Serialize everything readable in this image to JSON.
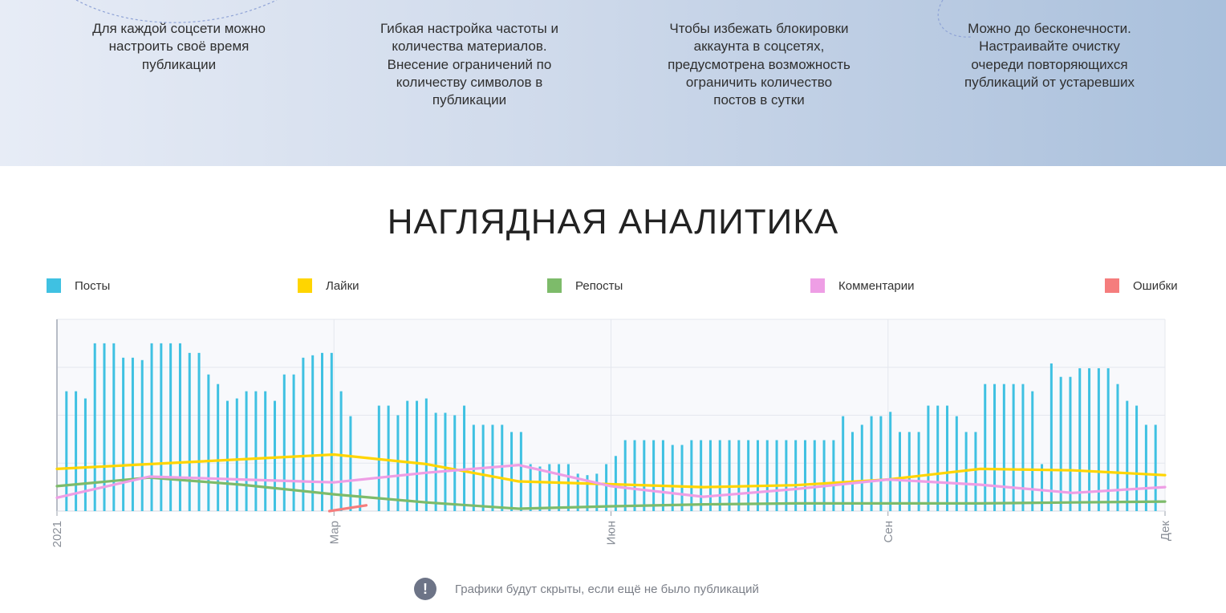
{
  "features": [
    {
      "lines": [
        "Для каждой соцсети можно",
        "настроить своё время",
        "публикации"
      ]
    },
    {
      "lines": [
        "Гибкая настройка частоты и",
        "количества материалов.",
        "Внесение ограничений по",
        "количеству символов в",
        "публикации"
      ]
    },
    {
      "lines": [
        "Чтобы избежать блокировки",
        "аккаунта в соцсетях,",
        "предусмотрена возможность",
        "ограничить количество",
        "постов в сутки"
      ]
    },
    {
      "lines": [
        "Можно до бесконечности.",
        "Настраивайте очистку",
        "очереди повторяющихся",
        "публикаций от устаревших"
      ]
    }
  ],
  "section_title": "НАГЛЯДНАЯ АНАЛИТИКА",
  "notice": {
    "icon": "exclamation-icon",
    "text": "Графики будут скрыты, если ещё не было публикаций"
  },
  "colors": {
    "posts": "#3fc1e2",
    "likes": "#ffd500",
    "reposts": "#7dbb6a",
    "comments": "#ee9ee5",
    "errors": "#f57d7d"
  },
  "chart_data": {
    "type": "bar",
    "title": "",
    "xlabel": "",
    "ylabel": "",
    "ylim": [
      0,
      4
    ],
    "grid": true,
    "legend_position": "top",
    "legend": [
      "Посты",
      "Лайки",
      "Репосты",
      "Комментарии",
      "Ошибки"
    ],
    "x_ticks": [
      "2021",
      "Мар",
      "Июн",
      "Сен",
      "Дек"
    ],
    "x_range": [
      0,
      12
    ],
    "series": [
      {
        "name": "Посты",
        "type": "bar",
        "values": [
          2.5,
          2.5,
          2.35,
          3.5,
          3.5,
          3.5,
          3.2,
          3.2,
          3.15,
          3.5,
          3.5,
          3.5,
          3.5,
          3.3,
          3.3,
          2.85,
          2.65,
          2.3,
          2.35,
          2.5,
          2.5,
          2.5,
          2.3,
          2.85,
          2.85,
          3.2,
          3.25,
          3.3,
          3.3,
          2.5,
          1.98,
          0.46,
          0,
          2.2,
          2.2,
          2.0,
          2.3,
          2.3,
          2.35,
          2.05,
          2.05,
          2.0,
          2.2,
          1.8,
          1.8,
          1.8,
          1.8,
          1.65,
          1.65,
          0.98,
          0.93,
          0.98,
          0.98,
          0.98,
          0.78,
          0.75,
          0.78,
          0.98,
          1.15,
          1.48,
          1.48,
          1.48,
          1.48,
          1.48,
          1.38,
          1.38,
          1.48,
          1.48,
          1.48,
          1.48,
          1.48,
          1.48,
          1.48,
          1.48,
          1.48,
          1.48,
          1.48,
          1.48,
          1.48,
          1.48,
          1.48,
          1.48,
          1.98,
          1.65,
          1.8,
          1.98,
          1.98,
          2.07,
          1.65,
          1.65,
          1.65,
          2.2,
          2.2,
          2.2,
          1.98,
          1.65,
          1.65,
          2.65,
          2.65,
          2.65,
          2.65,
          2.65,
          2.5,
          0.98,
          3.08,
          2.8,
          2.8,
          2.98,
          2.98,
          2.98,
          2.98,
          2.65,
          2.3,
          2.2,
          1.8,
          1.8
        ]
      },
      {
        "name": "Лайки",
        "type": "line",
        "points": [
          [
            0,
            0.88
          ],
          [
            3,
            1.18
          ],
          [
            4,
            0.98
          ],
          [
            5,
            0.62
          ],
          [
            6,
            0.56
          ],
          [
            7,
            0.5
          ],
          [
            8,
            0.54
          ],
          [
            9,
            0.66
          ],
          [
            10,
            0.88
          ],
          [
            11,
            0.85
          ],
          [
            12,
            0.75
          ]
        ]
      },
      {
        "name": "Репосты",
        "type": "line",
        "points": [
          [
            0,
            0.52
          ],
          [
            1,
            0.7
          ],
          [
            2,
            0.55
          ],
          [
            3,
            0.35
          ],
          [
            4,
            0.18
          ],
          [
            5,
            0.05
          ],
          [
            6,
            0.1
          ],
          [
            7,
            0.14
          ],
          [
            8,
            0.16
          ],
          [
            9,
            0.16
          ],
          [
            10,
            0.16
          ],
          [
            11,
            0.18
          ],
          [
            12,
            0.2
          ]
        ]
      },
      {
        "name": "Комментарии",
        "type": "line",
        "points": [
          [
            0,
            0.28
          ],
          [
            1,
            0.72
          ],
          [
            2,
            0.66
          ],
          [
            3,
            0.6
          ],
          [
            4,
            0.8
          ],
          [
            5,
            0.96
          ],
          [
            6,
            0.52
          ],
          [
            7,
            0.3
          ],
          [
            8,
            0.46
          ],
          [
            9,
            0.66
          ],
          [
            10,
            0.55
          ],
          [
            11,
            0.38
          ],
          [
            12,
            0.5
          ]
        ]
      },
      {
        "name": "Ошибки",
        "type": "line",
        "points": [
          [
            2.95,
            0
          ],
          [
            3.35,
            0.12
          ]
        ]
      }
    ]
  }
}
